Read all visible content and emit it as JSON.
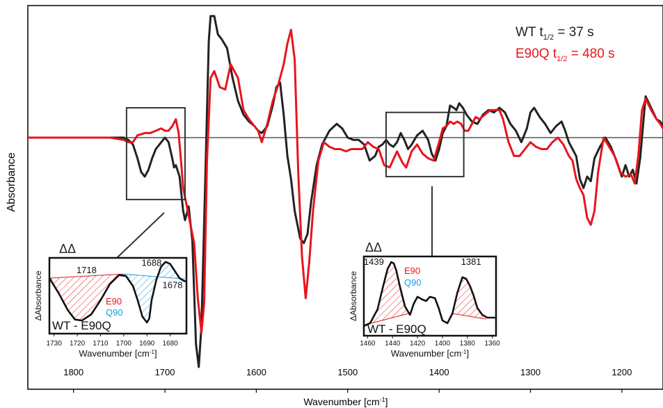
{
  "colors": {
    "wt": "#222222",
    "e90q": "#e8141c",
    "q90": "#1b9be0",
    "axis": "#000000"
  },
  "chart_data": {
    "type": "line",
    "xlabel": "Wavenumber [cm-1]",
    "xlabel_main": "Wavenumber [cm",
    "xlabel_sup": "-1",
    "xlabel_close": "]",
    "ylabel": "Absorbance",
    "xlim": [
      1850,
      1155
    ],
    "ylim": [
      -1.0,
      0.55
    ],
    "x_ticks": [
      1800,
      1700,
      1600,
      1500,
      1400,
      1300,
      1200
    ],
    "x_tick_labels": [
      "1800",
      "1700",
      "1600",
      "1500",
      "1400",
      "1300",
      "1200"
    ],
    "legend": {
      "placement": "top-right",
      "wt": {
        "prefix": "WT t",
        "sub": "1/2",
        "suffix": " = 37 s"
      },
      "e90q": {
        "prefix": "E90Q t",
        "sub": "1/2",
        "suffix": " = 480 s"
      }
    },
    "series": [
      {
        "name": "WT t1/2 = 37 s",
        "color": "#222222",
        "x": [
          1850,
          1780,
          1760,
          1745,
          1740,
          1735,
          1730,
          1726,
          1722,
          1718,
          1714,
          1710,
          1704,
          1700,
          1696,
          1692,
          1690,
          1688,
          1684,
          1680,
          1678,
          1674,
          1670,
          1666,
          1663,
          1660,
          1656,
          1652,
          1650,
          1646,
          1642,
          1638,
          1632,
          1626,
          1620,
          1614,
          1608,
          1602,
          1598,
          1594,
          1588,
          1582,
          1578,
          1574,
          1570,
          1566,
          1562,
          1558,
          1552,
          1548,
          1544,
          1540,
          1534,
          1528,
          1520,
          1512,
          1506,
          1500,
          1494,
          1488,
          1482,
          1476,
          1470,
          1466,
          1462,
          1458,
          1454,
          1450,
          1446,
          1442,
          1438,
          1434,
          1430,
          1424,
          1418,
          1412,
          1408,
          1404,
          1400,
          1396,
          1392,
          1388,
          1384,
          1381,
          1378,
          1374,
          1370,
          1364,
          1358,
          1352,
          1346,
          1340,
          1334,
          1328,
          1322,
          1316,
          1310,
          1304,
          1300,
          1296,
          1290,
          1284,
          1278,
          1272,
          1266,
          1262,
          1258,
          1254,
          1250,
          1246,
          1242,
          1238,
          1234,
          1230,
          1224,
          1218,
          1212,
          1206,
          1200,
          1196,
          1192,
          1188,
          1184,
          1180,
          1174,
          1168,
          1162,
          1158,
          1155
        ],
        "values": [
          0.0,
          0.0,
          0.0,
          0.0,
          -0.01,
          -0.03,
          -0.09,
          -0.15,
          -0.17,
          -0.14,
          -0.09,
          -0.05,
          -0.02,
          0.0,
          -0.02,
          -0.09,
          -0.13,
          -0.12,
          -0.17,
          -0.32,
          -0.36,
          -0.3,
          -0.45,
          -0.9,
          -1.0,
          -0.82,
          -0.2,
          0.42,
          0.53,
          0.53,
          0.45,
          0.43,
          0.39,
          0.26,
          0.16,
          0.1,
          0.07,
          0.05,
          0.03,
          0.02,
          0.05,
          0.14,
          0.22,
          0.24,
          0.1,
          -0.08,
          -0.18,
          -0.32,
          -0.44,
          -0.46,
          -0.42,
          -0.28,
          -0.12,
          -0.03,
          0.03,
          0.06,
          0.04,
          0.0,
          -0.01,
          -0.01,
          -0.03,
          -0.1,
          -0.08,
          -0.04,
          -0.03,
          -0.01,
          -0.03,
          -0.04,
          -0.02,
          0.02,
          -0.01,
          -0.05,
          -0.03,
          0.01,
          0.03,
          -0.01,
          -0.07,
          -0.1,
          -0.05,
          0.02,
          0.05,
          0.14,
          0.13,
          0.12,
          0.15,
          0.13,
          0.1,
          0.07,
          0.06,
          0.1,
          0.12,
          0.11,
          0.13,
          0.11,
          0.06,
          0.03,
          -0.02,
          0.04,
          0.11,
          0.13,
          0.09,
          0.06,
          0.02,
          0.05,
          0.07,
          0.03,
          -0.02,
          -0.05,
          -0.08,
          -0.18,
          -0.22,
          -0.17,
          -0.19,
          -0.09,
          -0.04,
          0.0,
          -0.04,
          -0.1,
          -0.17,
          -0.12,
          -0.17,
          -0.14,
          -0.2,
          -0.09,
          0.18,
          0.13,
          0.08,
          0.07,
          0.05
        ],
        "stroke_width": 3
      },
      {
        "name": "E90Q t1/2 = 480 s",
        "color": "#e8141c",
        "x": [
          1850,
          1780,
          1760,
          1745,
          1740,
          1735,
          1730,
          1722,
          1716,
          1710,
          1704,
          1700,
          1696,
          1692,
          1688,
          1685,
          1682,
          1680,
          1676,
          1672,
          1668,
          1664,
          1660,
          1657,
          1654,
          1650,
          1646,
          1640,
          1634,
          1628,
          1620,
          1614,
          1608,
          1602,
          1598,
          1594,
          1588,
          1582,
          1576,
          1570,
          1566,
          1562,
          1558,
          1554,
          1550,
          1546,
          1542,
          1538,
          1532,
          1526,
          1520,
          1514,
          1508,
          1502,
          1496,
          1490,
          1484,
          1478,
          1472,
          1466,
          1460,
          1454,
          1446,
          1440,
          1436,
          1430,
          1424,
          1418,
          1412,
          1406,
          1400,
          1396,
          1392,
          1388,
          1384,
          1380,
          1376,
          1372,
          1368,
          1364,
          1360,
          1356,
          1350,
          1344,
          1338,
          1334,
          1330,
          1324,
          1318,
          1312,
          1306,
          1300,
          1294,
          1288,
          1282,
          1276,
          1270,
          1264,
          1258,
          1254,
          1250,
          1246,
          1242,
          1238,
          1234,
          1230,
          1226,
          1220,
          1214,
          1208,
          1202,
          1196,
          1190,
          1186,
          1182,
          1178,
          1174,
          1168,
          1162,
          1158,
          1155
        ],
        "values": [
          0.0,
          0.0,
          0.0,
          -0.01,
          -0.02,
          -0.02,
          0.01,
          0.02,
          0.02,
          0.03,
          0.04,
          0.03,
          0.03,
          0.05,
          0.08,
          0.02,
          -0.12,
          -0.22,
          -0.3,
          -0.38,
          -0.46,
          -0.7,
          -0.85,
          -0.72,
          -0.1,
          0.26,
          0.29,
          0.22,
          0.21,
          0.32,
          0.26,
          0.12,
          0.08,
          0.05,
          0.03,
          -0.02,
          0.06,
          0.16,
          0.23,
          0.32,
          0.41,
          0.47,
          0.34,
          -0.16,
          -0.52,
          -0.7,
          -0.54,
          -0.32,
          -0.1,
          -0.02,
          -0.04,
          -0.05,
          -0.05,
          -0.06,
          -0.05,
          -0.05,
          -0.05,
          -0.02,
          -0.04,
          -0.05,
          -0.12,
          -0.13,
          -0.06,
          -0.11,
          -0.13,
          -0.06,
          -0.03,
          -0.07,
          -0.09,
          -0.1,
          -0.02,
          0.04,
          0.05,
          0.07,
          0.06,
          0.07,
          0.06,
          0.03,
          0.03,
          0.06,
          0.09,
          0.08,
          0.1,
          0.12,
          0.12,
          0.12,
          0.08,
          -0.02,
          -0.08,
          -0.08,
          -0.05,
          -0.02,
          -0.04,
          -0.05,
          -0.05,
          -0.02,
          0.0,
          -0.03,
          -0.08,
          -0.1,
          -0.18,
          -0.22,
          -0.25,
          -0.35,
          -0.38,
          -0.32,
          -0.15,
          0.0,
          -0.04,
          -0.08,
          -0.15,
          -0.17,
          -0.16,
          -0.2,
          -0.08,
          0.12,
          0.17,
          0.12,
          0.08,
          0.06,
          0.04
        ],
        "stroke_width": 3
      }
    ],
    "zoom_boxes": [
      {
        "x_range": [
          1742,
          1678
        ],
        "y_range": [
          0.13,
          -0.27
        ]
      },
      {
        "x_range": [
          1458,
          1373
        ],
        "y_range": [
          0.11,
          -0.17
        ]
      }
    ],
    "insets": [
      {
        "title": "ΔΔ",
        "ylabel": "ΔAbsorbance",
        "xlabel_main": "Wavenumber [cm",
        "xlabel_sup": "-1",
        "xlabel_close": "]",
        "caption": "WT - E90Q",
        "xlim": [
          1732,
          1673
        ],
        "ylim": [
          -0.55,
          0.2
        ],
        "x_ticks": [
          1730,
          1720,
          1710,
          1700,
          1690,
          1680
        ],
        "x_tick_labels": [
          "1730",
          "1720",
          "1710",
          "1700",
          "1690",
          "1680"
        ],
        "peak_labels": [
          {
            "text": "1718",
            "x": 1716,
            "y": 0.05
          },
          {
            "text": "1688",
            "x": 1688,
            "y": 0.12
          },
          {
            "text": "1678",
            "x": 1679,
            "y": -0.1
          }
        ],
        "legend_e90": "E90",
        "legend_q90": "Q90",
        "curve_x": [
          1732,
          1728,
          1724,
          1721,
          1718,
          1714,
          1710,
          1706,
          1702,
          1699,
          1696,
          1694,
          1692,
          1690,
          1689,
          1688,
          1686,
          1684,
          1682,
          1680,
          1678,
          1676,
          1674,
          1673
        ],
        "curve_y": [
          0.0,
          -0.15,
          -0.32,
          -0.41,
          -0.42,
          -0.36,
          -0.22,
          -0.06,
          0.03,
          0.02,
          -0.08,
          -0.22,
          -0.38,
          -0.44,
          -0.4,
          -0.22,
          -0.02,
          0.11,
          0.16,
          0.14,
          0.07,
          0.0,
          -0.03,
          -0.03
        ],
        "hatches": [
          {
            "color": "#e8141c",
            "x_from": 1732,
            "x_to": 1700,
            "base_from": 0.0,
            "base_to": 0.04
          },
          {
            "color": "#1b9be0",
            "x_from": 1700,
            "x_to": 1673,
            "base_from": 0.04,
            "base_to": -0.01
          }
        ]
      },
      {
        "title": "ΔΔ",
        "ylabel": "ΔAbsorbance",
        "xlabel_main": "Wavenumber [cm",
        "xlabel_sup": "-1",
        "xlabel_close": "]",
        "caption": "WT - E90Q",
        "xlim": [
          1463,
          1357
        ],
        "ylim": [
          -0.33,
          0.24
        ],
        "x_ticks": [
          1460,
          1440,
          1420,
          1400,
          1380,
          1360
        ],
        "x_tick_labels": [
          "1460",
          "1440",
          "1420",
          "1400",
          "1380",
          "1360"
        ],
        "peak_labels": [
          {
            "text": "1439",
            "x": 1455,
            "y": 0.18
          },
          {
            "text": "1381",
            "x": 1377,
            "y": 0.18
          }
        ],
        "legend_e90": "E90",
        "legend_q90": "Q90",
        "curve_x": [
          1463,
          1458,
          1452,
          1448,
          1444,
          1441,
          1439,
          1437,
          1434,
          1430,
          1426,
          1423,
          1420,
          1416,
          1413,
          1410,
          1406,
          1403,
          1400,
          1396,
          1392,
          1388,
          1384,
          1381,
          1378,
          1375,
          1372,
          1368,
          1364,
          1360,
          1357
        ],
        "curve_y": [
          -0.26,
          -0.24,
          -0.14,
          0.01,
          0.15,
          0.2,
          0.19,
          0.14,
          0.02,
          -0.12,
          -0.18,
          -0.1,
          -0.05,
          -0.07,
          -0.08,
          -0.05,
          -0.06,
          -0.13,
          -0.22,
          -0.24,
          -0.17,
          -0.02,
          0.09,
          0.08,
          0.03,
          -0.04,
          -0.13,
          -0.18,
          -0.2,
          -0.2,
          -0.2
        ],
        "hatches": [
          {
            "color": "#e8141c",
            "x_from": 1457,
            "x_to": 1427,
            "base_from": -0.24,
            "base_to": -0.17
          },
          {
            "color": "#e8141c",
            "x_from": 1392,
            "x_to": 1365,
            "base_from": -0.17,
            "base_to": -0.21
          }
        ]
      }
    ]
  }
}
